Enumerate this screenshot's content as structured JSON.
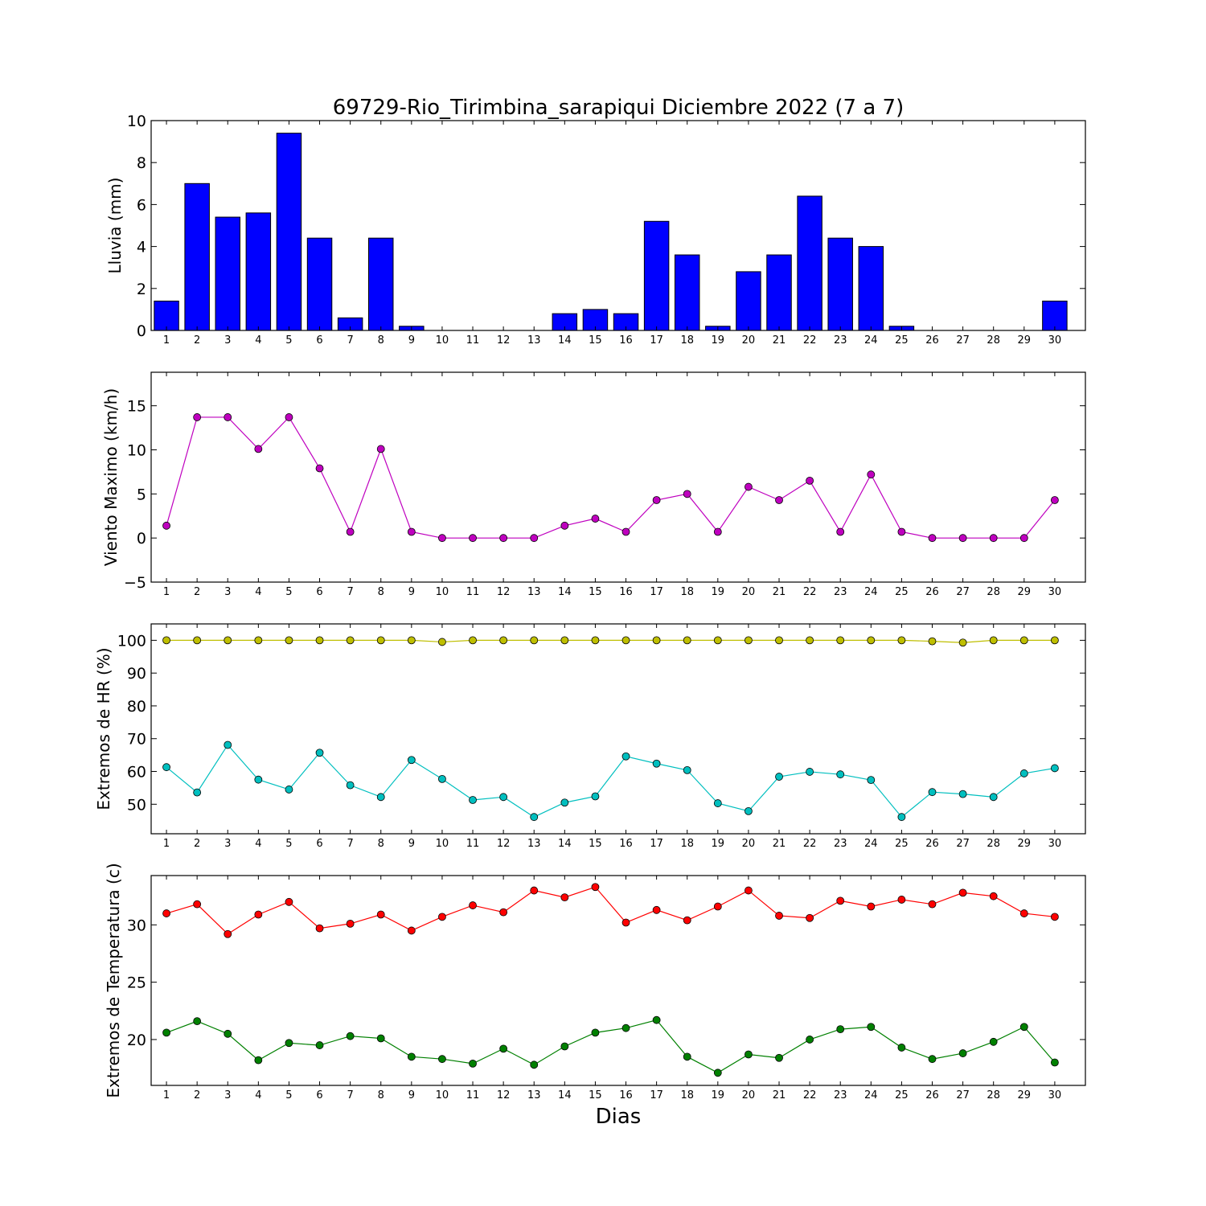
{
  "figure": {
    "title": "69729-Rio_Tirimbina_sarapiqui Diciembre 2022  (7 a 7)",
    "xlabel": "Dias"
  },
  "chart_data": [
    {
      "type": "bar",
      "ylabel": "Lluvia (mm)",
      "categories": [
        "1",
        "2",
        "3",
        "4",
        "5",
        "6",
        "7",
        "8",
        "9",
        "10",
        "11",
        "12",
        "13",
        "14",
        "15",
        "16",
        "17",
        "18",
        "19",
        "20",
        "21",
        "22",
        "23",
        "24",
        "25",
        "26",
        "27",
        "28",
        "29",
        "30"
      ],
      "ylim": [
        0,
        10
      ],
      "yticks": [
        0,
        2,
        4,
        6,
        8,
        10
      ],
      "series": [
        {
          "color": "#0000ff",
          "values": [
            1.4,
            7.0,
            5.4,
            5.6,
            9.4,
            4.4,
            0.6,
            4.4,
            0.2,
            0,
            0,
            0,
            0,
            0.8,
            1.0,
            0.8,
            5.2,
            3.6,
            0.2,
            2.8,
            3.6,
            6.4,
            4.4,
            4.0,
            0.2,
            0,
            0,
            0,
            0,
            1.4
          ]
        }
      ]
    },
    {
      "type": "line",
      "ylabel": "Viento Maximo (km/h)",
      "categories": [
        "1",
        "2",
        "3",
        "4",
        "5",
        "6",
        "7",
        "8",
        "9",
        "10",
        "11",
        "12",
        "13",
        "14",
        "15",
        "16",
        "17",
        "18",
        "19",
        "20",
        "21",
        "22",
        "23",
        "24",
        "25",
        "26",
        "27",
        "28",
        "29",
        "30"
      ],
      "ylim": [
        -5,
        18.8
      ],
      "yticks": [
        -5,
        0,
        5,
        10,
        15
      ],
      "series": [
        {
          "color": "#bf00bf",
          "values": [
            1.4,
            13.7,
            13.7,
            10.1,
            13.7,
            7.9,
            0.7,
            10.1,
            0.7,
            0,
            0,
            0,
            0,
            1.4,
            2.2,
            0.7,
            4.3,
            5.0,
            0.7,
            5.8,
            4.3,
            6.5,
            0.7,
            7.2,
            0.7,
            0,
            0,
            0,
            0,
            4.3
          ]
        }
      ]
    },
    {
      "type": "line",
      "ylabel": "Extremos de HR (%)",
      "categories": [
        "1",
        "2",
        "3",
        "4",
        "5",
        "6",
        "7",
        "8",
        "9",
        "10",
        "11",
        "12",
        "13",
        "14",
        "15",
        "16",
        "17",
        "18",
        "19",
        "20",
        "21",
        "22",
        "23",
        "24",
        "25",
        "26",
        "27",
        "28",
        "29",
        "30"
      ],
      "ylim": [
        41,
        105
      ],
      "yticks": [
        50,
        60,
        70,
        80,
        90,
        100
      ],
      "series": [
        {
          "color": "#bfbf00",
          "values": [
            100,
            100,
            100,
            100,
            100,
            100,
            100,
            100,
            100,
            99.5,
            100,
            100,
            100,
            100,
            100,
            100,
            100,
            100,
            100,
            100,
            100,
            100,
            100,
            100,
            100,
            99.7,
            99.3,
            100,
            100,
            100
          ]
        },
        {
          "color": "#00bfbf",
          "values": [
            61.3,
            53.6,
            68.1,
            57.5,
            54.5,
            65.7,
            55.8,
            52.2,
            63.5,
            57.7,
            51.3,
            52.2,
            46.1,
            50.5,
            52.4,
            64.6,
            62.4,
            60.4,
            50.3,
            47.9,
            58.4,
            59.9,
            59.1,
            57.4,
            46.1,
            53.7,
            53.1,
            52.2,
            59.4,
            61.0
          ]
        }
      ]
    },
    {
      "type": "line",
      "ylabel": "Extremos de Temperatura (c)",
      "categories": [
        "1",
        "2",
        "3",
        "4",
        "5",
        "6",
        "7",
        "8",
        "9",
        "10",
        "11",
        "12",
        "13",
        "14",
        "15",
        "16",
        "17",
        "18",
        "19",
        "20",
        "21",
        "22",
        "23",
        "24",
        "25",
        "26",
        "27",
        "28",
        "29",
        "30"
      ],
      "ylim": [
        16,
        34.3
      ],
      "yticks": [
        20,
        25,
        30
      ],
      "series": [
        {
          "color": "#ff0000",
          "values": [
            31.0,
            31.8,
            29.2,
            30.9,
            32.0,
            29.7,
            30.1,
            30.9,
            29.5,
            30.7,
            31.7,
            31.1,
            33.0,
            32.4,
            33.3,
            30.2,
            31.3,
            30.4,
            31.6,
            33.0,
            30.8,
            30.6,
            32.1,
            31.6,
            32.2,
            31.8,
            32.8,
            32.5,
            31.0,
            30.7
          ]
        },
        {
          "color": "#008000",
          "values": [
            20.6,
            21.6,
            20.5,
            18.2,
            19.7,
            19.5,
            20.3,
            20.1,
            18.5,
            18.3,
            17.9,
            19.2,
            17.8,
            19.4,
            20.6,
            21.0,
            21.7,
            18.5,
            17.1,
            18.7,
            18.4,
            20.0,
            20.9,
            21.1,
            19.3,
            18.3,
            18.8,
            19.8,
            21.1,
            18.0
          ]
        }
      ]
    }
  ]
}
